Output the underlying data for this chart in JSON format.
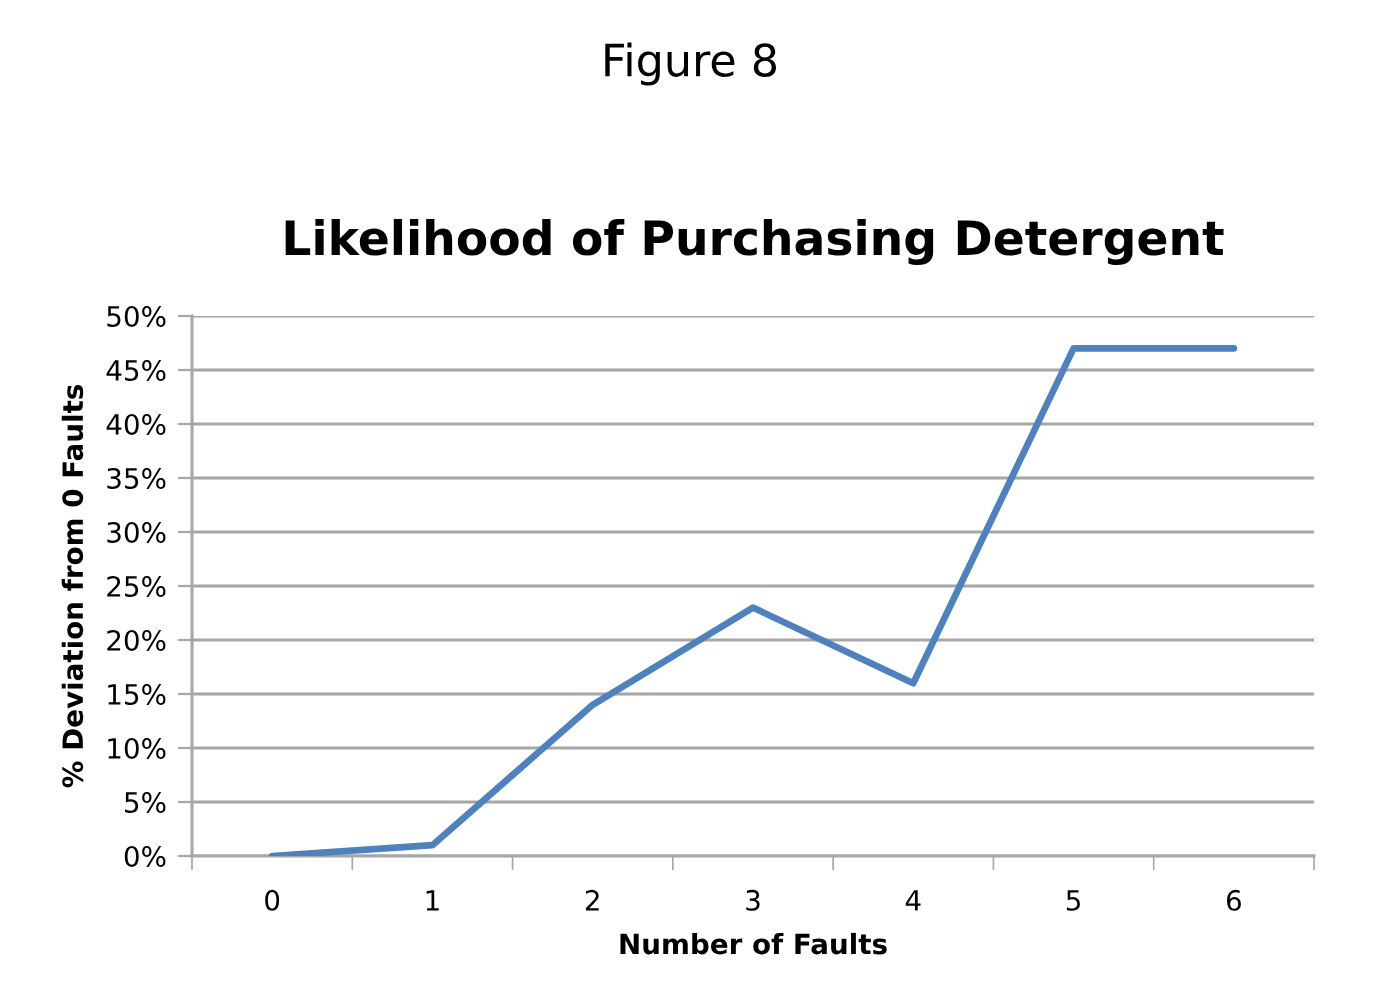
{
  "chart_data": {
    "type": "line",
    "title": "Likelihood of Purchasing Detergent",
    "annotations": [
      "Figure 8"
    ],
    "xlabel": "Number of Faults",
    "ylabel": "% Deviation from 0 Faults",
    "categories": [
      "0",
      "1",
      "2",
      "3",
      "4",
      "5",
      "6"
    ],
    "values": [
      0,
      1,
      14,
      23,
      16,
      47,
      47
    ],
    "color": "#4f81bd",
    "ylim": [
      0,
      50
    ],
    "yticks": [
      {
        "value": 0,
        "label": "0%"
      },
      {
        "value": 5,
        "label": "5%"
      },
      {
        "value": 10,
        "label": "10%"
      },
      {
        "value": 15,
        "label": "15%"
      },
      {
        "value": 20,
        "label": "20%"
      },
      {
        "value": 25,
        "label": "25%"
      },
      {
        "value": 30,
        "label": "30%"
      },
      {
        "value": 35,
        "label": "35%"
      },
      {
        "value": 40,
        "label": "40%"
      },
      {
        "value": 45,
        "label": "45%"
      },
      {
        "value": 50,
        "label": "50%"
      }
    ],
    "grid": "y"
  }
}
